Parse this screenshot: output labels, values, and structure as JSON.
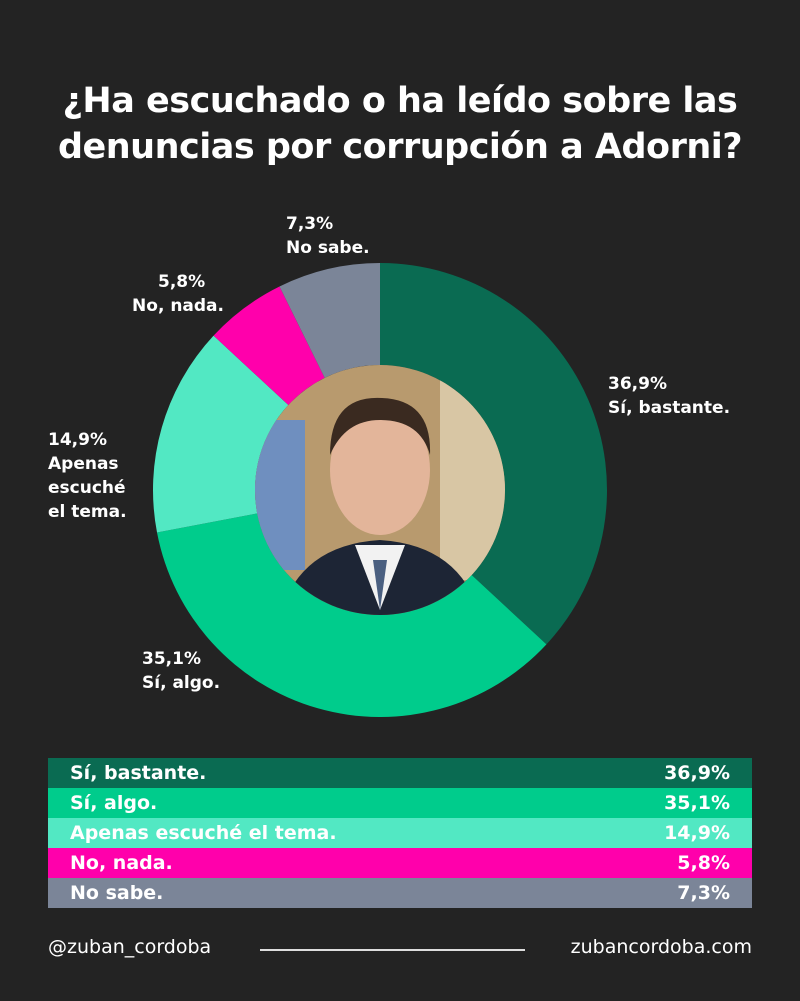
{
  "title_line1": "¿Ha escuchado o ha leído sobre las",
  "title_line2": "denuncias por corrupción a Adorni?",
  "chart_data": {
    "type": "pie",
    "donut": true,
    "start": "top, clockwise",
    "slices": [
      {
        "label": "Sí, bastante.",
        "value": 36.9,
        "display": "36,9%",
        "color": "#0a6b52"
      },
      {
        "label": "Sí, algo.",
        "value": 35.1,
        "display": "35,1%",
        "color": "#00cc8c"
      },
      {
        "label": "Apenas escuché el tema.",
        "value": 14.9,
        "display": "14,9%",
        "color": "#52e8c3",
        "chart_label_lines": [
          "Apenas",
          "escuché",
          "el tema."
        ]
      },
      {
        "label": "No, nada.",
        "value": 5.8,
        "display": "5,8%",
        "color": "#ff00ab"
      },
      {
        "label": "No sabe.",
        "value": 7.3,
        "display": "7,3%",
        "color": "#7b8598"
      }
    ]
  },
  "footer": {
    "handle": "@zuban_cordoba",
    "website": "zubancordoba.com"
  }
}
